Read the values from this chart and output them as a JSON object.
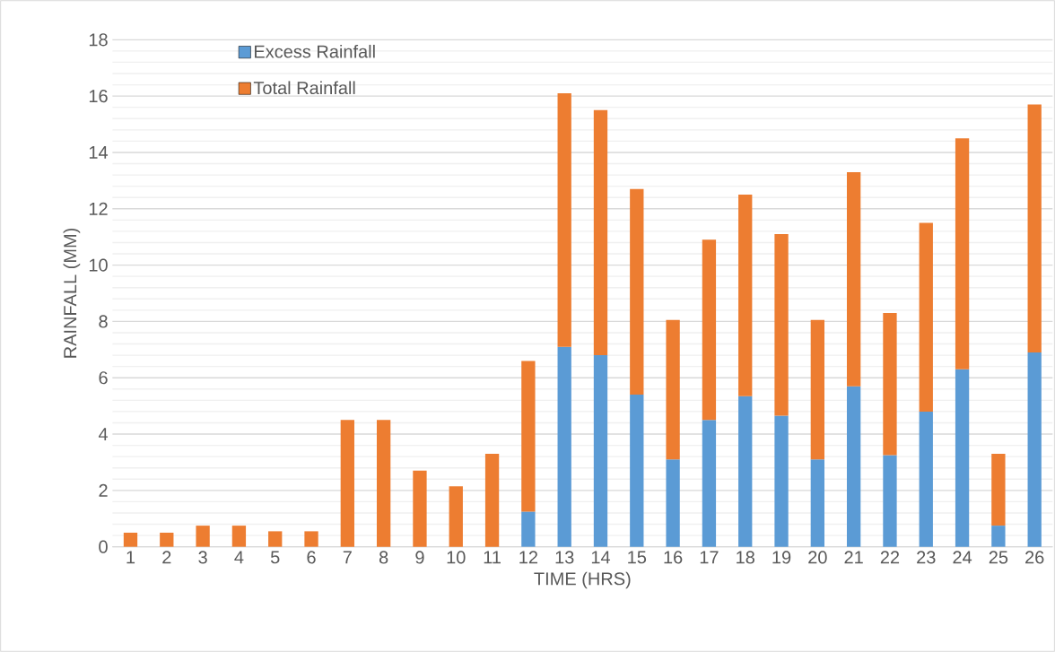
{
  "chart_data": {
    "type": "bar",
    "stacked": true,
    "xlabel": "TIME (HRS)",
    "ylabel": "RAINFALL (MM)",
    "categories": [
      "1",
      "2",
      "3",
      "4",
      "5",
      "6",
      "7",
      "8",
      "9",
      "10",
      "11",
      "12",
      "13",
      "14",
      "15",
      "16",
      "17",
      "18",
      "19",
      "20",
      "21",
      "22",
      "23",
      "24",
      "25",
      "26"
    ],
    "series": [
      {
        "name": "Excess Rainfall",
        "color": "#5b9bd5",
        "values": [
          null,
          null,
          null,
          null,
          null,
          null,
          null,
          null,
          null,
          null,
          null,
          1.25,
          7.1,
          6.8,
          5.4,
          3.1,
          4.5,
          5.35,
          4.65,
          3.1,
          5.7,
          3.25,
          4.8,
          6.3,
          0.75,
          6.9
        ]
      },
      {
        "name": "Total Rainfall",
        "color": "#ed7d31",
        "values": [
          0.5,
          0.5,
          0.75,
          0.75,
          0.55,
          0.55,
          4.5,
          4.5,
          2.7,
          2.15,
          3.3,
          5.35,
          9.0,
          8.7,
          7.3,
          4.95,
          6.4,
          7.15,
          6.45,
          4.95,
          7.6,
          5.05,
          6.7,
          8.2,
          2.55,
          8.8
        ]
      }
    ],
    "ylim": [
      0,
      18
    ],
    "yticks": [
      0,
      2,
      4,
      6,
      8,
      10,
      12,
      14,
      16,
      18
    ],
    "grid": "y",
    "legend": "top left"
  }
}
